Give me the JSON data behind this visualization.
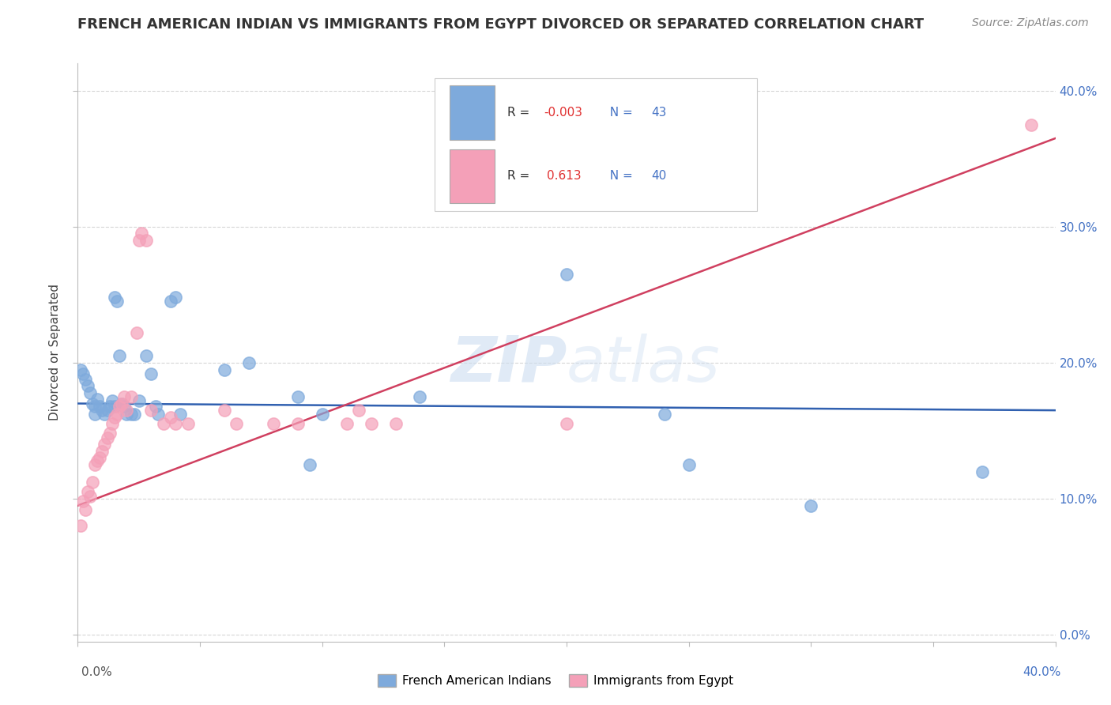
{
  "title": "FRENCH AMERICAN INDIAN VS IMMIGRANTS FROM EGYPT DIVORCED OR SEPARATED CORRELATION CHART",
  "source": "Source: ZipAtlas.com",
  "ylabel": "Divorced or Separated",
  "legend_blue_label": "French American Indians",
  "legend_pink_label": "Immigrants from Egypt",
  "xlim": [
    0.0,
    0.4
  ],
  "ylim": [
    -0.005,
    0.42
  ],
  "yticks": [
    0.0,
    0.1,
    0.2,
    0.3,
    0.4
  ],
  "watermark": "ZIPatlas",
  "blue_color": "#7eaadc",
  "pink_color": "#f4a0b8",
  "blue_scatter": [
    [
      0.001,
      0.195
    ],
    [
      0.002,
      0.192
    ],
    [
      0.003,
      0.188
    ],
    [
      0.004,
      0.183
    ],
    [
      0.005,
      0.178
    ],
    [
      0.006,
      0.17
    ],
    [
      0.007,
      0.168
    ],
    [
      0.007,
      0.162
    ],
    [
      0.008,
      0.173
    ],
    [
      0.009,
      0.168
    ],
    [
      0.01,
      0.165
    ],
    [
      0.011,
      0.162
    ],
    [
      0.012,
      0.165
    ],
    [
      0.013,
      0.168
    ],
    [
      0.014,
      0.172
    ],
    [
      0.015,
      0.168
    ],
    [
      0.015,
      0.248
    ],
    [
      0.016,
      0.245
    ],
    [
      0.017,
      0.205
    ],
    [
      0.018,
      0.17
    ],
    [
      0.019,
      0.168
    ],
    [
      0.02,
      0.162
    ],
    [
      0.022,
      0.162
    ],
    [
      0.023,
      0.162
    ],
    [
      0.025,
      0.172
    ],
    [
      0.028,
      0.205
    ],
    [
      0.03,
      0.192
    ],
    [
      0.032,
      0.168
    ],
    [
      0.033,
      0.162
    ],
    [
      0.038,
      0.245
    ],
    [
      0.04,
      0.248
    ],
    [
      0.042,
      0.162
    ],
    [
      0.06,
      0.195
    ],
    [
      0.07,
      0.2
    ],
    [
      0.09,
      0.175
    ],
    [
      0.095,
      0.125
    ],
    [
      0.1,
      0.162
    ],
    [
      0.14,
      0.175
    ],
    [
      0.2,
      0.265
    ],
    [
      0.24,
      0.162
    ],
    [
      0.25,
      0.125
    ],
    [
      0.3,
      0.095
    ],
    [
      0.37,
      0.12
    ]
  ],
  "pink_scatter": [
    [
      0.001,
      0.08
    ],
    [
      0.002,
      0.098
    ],
    [
      0.003,
      0.092
    ],
    [
      0.004,
      0.105
    ],
    [
      0.005,
      0.102
    ],
    [
      0.006,
      0.112
    ],
    [
      0.007,
      0.125
    ],
    [
      0.008,
      0.128
    ],
    [
      0.009,
      0.13
    ],
    [
      0.01,
      0.135
    ],
    [
      0.011,
      0.14
    ],
    [
      0.012,
      0.145
    ],
    [
      0.013,
      0.148
    ],
    [
      0.014,
      0.155
    ],
    [
      0.015,
      0.16
    ],
    [
      0.016,
      0.162
    ],
    [
      0.017,
      0.168
    ],
    [
      0.018,
      0.17
    ],
    [
      0.019,
      0.175
    ],
    [
      0.02,
      0.165
    ],
    [
      0.022,
      0.175
    ],
    [
      0.024,
      0.222
    ],
    [
      0.025,
      0.29
    ],
    [
      0.026,
      0.295
    ],
    [
      0.028,
      0.29
    ],
    [
      0.03,
      0.165
    ],
    [
      0.035,
      0.155
    ],
    [
      0.038,
      0.16
    ],
    [
      0.04,
      0.155
    ],
    [
      0.045,
      0.155
    ],
    [
      0.06,
      0.165
    ],
    [
      0.065,
      0.155
    ],
    [
      0.08,
      0.155
    ],
    [
      0.09,
      0.155
    ],
    [
      0.11,
      0.155
    ],
    [
      0.115,
      0.165
    ],
    [
      0.12,
      0.155
    ],
    [
      0.13,
      0.155
    ],
    [
      0.2,
      0.155
    ],
    [
      0.39,
      0.375
    ]
  ],
  "blue_line_x": [
    0.0,
    0.4
  ],
  "blue_line_y": [
    0.17,
    0.165
  ],
  "pink_line_x": [
    0.0,
    0.4
  ],
  "pink_line_y": [
    0.095,
    0.365
  ],
  "blue_line_color": "#3060b0",
  "pink_line_color": "#d04060",
  "background_color": "#ffffff",
  "grid_color": "#cccccc",
  "grid_top_color": "#cccccc"
}
